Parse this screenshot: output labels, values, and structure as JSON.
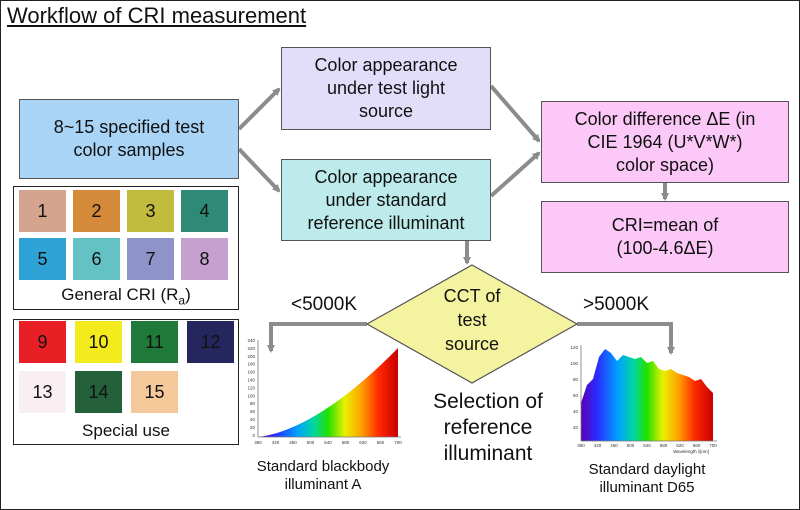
{
  "title": "Workflow of CRI measurement",
  "boxes": {
    "samples": [
      "8~15 specified test",
      "color samples"
    ],
    "test_light": [
      "Color appearance",
      "under test light",
      "source"
    ],
    "reference": [
      "Color appearance",
      "under standard",
      "reference illuminant"
    ],
    "color_diff": [
      "Color difference ΔE (in",
      "CIE 1964 (U*V*W*)",
      "color space)"
    ],
    "cri": [
      "CRI=mean of",
      "(100-4.6ΔE)"
    ],
    "cct": [
      "CCT of",
      "test",
      "source"
    ]
  },
  "general_cri": {
    "caption": "General CRI (R",
    "caption_sub": "a",
    "caption_end": ")",
    "swatches": [
      {
        "label": "1",
        "color": "#d4a48f"
      },
      {
        "label": "2",
        "color": "#d58a3a"
      },
      {
        "label": "3",
        "color": "#c1bb3e"
      },
      {
        "label": "4",
        "color": "#2e8a76"
      },
      {
        "label": "5",
        "color": "#2fa3d6"
      },
      {
        "label": "6",
        "color": "#64c2c4"
      },
      {
        "label": "7",
        "color": "#8e93c9"
      },
      {
        "label": "8",
        "color": "#c6a1cf"
      }
    ]
  },
  "special": {
    "caption": "Special use",
    "swatches": [
      {
        "label": "9",
        "color": "#e82025",
        "text_color": "#111111"
      },
      {
        "label": "10",
        "color": "#f4eb1f",
        "text_color": "#111111"
      },
      {
        "label": "11",
        "color": "#1f7a3a",
        "text_color": "#111111"
      },
      {
        "label": "12",
        "color": "#26265e",
        "text_color": "#111111"
      },
      {
        "label": "13",
        "color": "#f9eff2",
        "text_color": "#111111"
      },
      {
        "label": "14",
        "color": "#24613a",
        "text_color": "#111111"
      },
      {
        "label": "15",
        "color": "#f5c89a",
        "text_color": "#111111"
      }
    ]
  },
  "branches": {
    "low": "<5000K",
    "high": ">5000K"
  },
  "selection": [
    "Selection of",
    "reference",
    "illuminant"
  ],
  "plot_a": {
    "caption": [
      "Standard blackbody",
      "illuminant A"
    ],
    "x_ticks": [
      "380",
      "420",
      "460",
      "500",
      "540",
      "580",
      "620",
      "660",
      "700"
    ],
    "y_ticks": [
      "240",
      "220",
      "200",
      "180",
      "160",
      "140",
      "120",
      "100",
      "80",
      "60",
      "40",
      "20",
      "0"
    ]
  },
  "plot_d65": {
    "caption": [
      "Standard daylight",
      "illuminant D65"
    ],
    "x_ticks": [
      "380",
      "420",
      "460",
      "500",
      "540",
      "580",
      "620",
      "660",
      "700"
    ],
    "y_ticks": [
      "120",
      "100",
      "80",
      "60",
      "40",
      "20"
    ],
    "xlabel": "Wavelength λ[nm]"
  },
  "colors": {
    "box_blue": "#a9d4f5",
    "box_lavender": "#e2defa",
    "box_teal": "#bdeaea",
    "box_pink": "#fbc8f7",
    "diamond": "#f4f4a0",
    "arrow": "#8c8c8c"
  }
}
